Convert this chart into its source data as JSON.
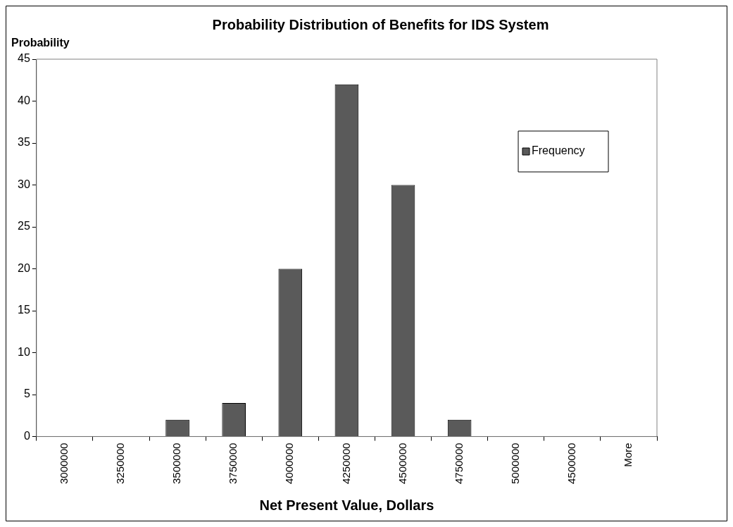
{
  "chart_data": {
    "type": "bar",
    "title": "Probability Distribution of Benefits for IDS System",
    "xlabel": "Net Present Value, Dollars",
    "ylabel": "Probability",
    "categories": [
      "3000000",
      "3250000",
      "3500000",
      "3750000",
      "4000000",
      "4250000",
      "4500000",
      "4750000",
      "5000000",
      "4500000",
      "More"
    ],
    "series": [
      {
        "name": "Frequency",
        "color": "#5a5a5a",
        "values": [
          0,
          0,
          2,
          4,
          20,
          42,
          30,
          2,
          0,
          0,
          0
        ]
      }
    ],
    "ylim": [
      0,
      45
    ],
    "yticks": [
      0,
      5,
      10,
      15,
      20,
      25,
      30,
      35,
      40,
      45
    ],
    "grid": false,
    "legend": "top right"
  }
}
